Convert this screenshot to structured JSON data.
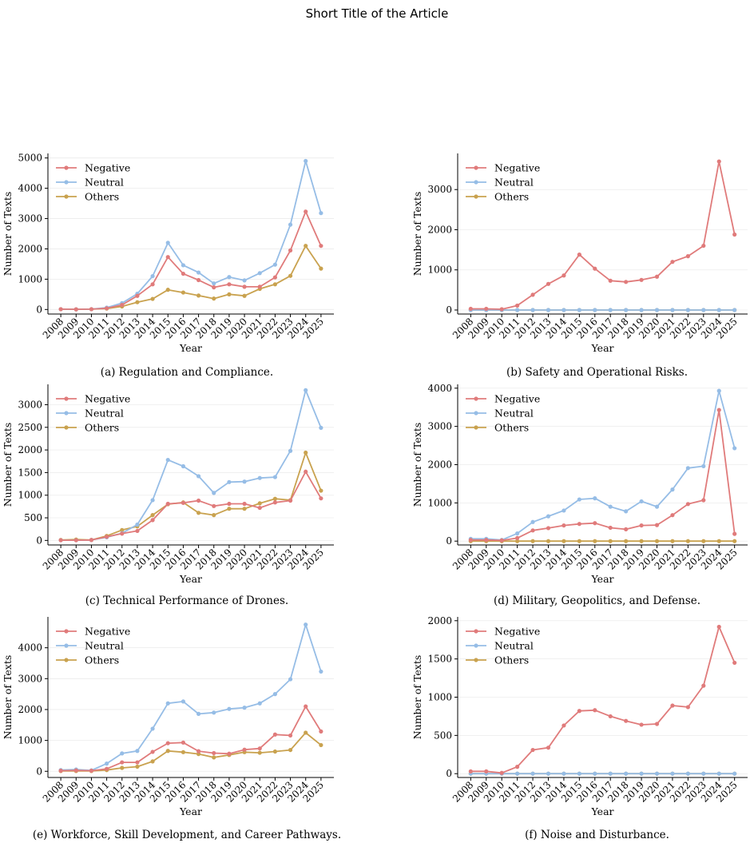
{
  "page_title": "Short Title of the Article",
  "colors": {
    "Negative": "#e07b7b",
    "Neutral": "#96bde6",
    "Others": "#c9a24f"
  },
  "chart_data": [
    {
      "type": "line",
      "caption": "(a) Regulation and Compliance.",
      "xlabel": "Year",
      "ylabel": "Number of Texts",
      "ylim": [
        -150,
        5150
      ],
      "yticks": [
        0,
        1000,
        2000,
        3000,
        4000,
        5000
      ],
      "legend": "top-left",
      "grid": "y-light",
      "x": [
        "2008",
        "2009",
        "2010",
        "2011",
        "2012",
        "2013",
        "2014",
        "2015",
        "2016",
        "2017",
        "2018",
        "2019",
        "2020",
        "2021",
        "2022",
        "2023",
        "2024",
        "2025"
      ],
      "series": [
        {
          "name": "Negative",
          "values": [
            10,
            5,
            10,
            40,
            150,
            450,
            830,
            1730,
            1180,
            970,
            730,
            830,
            750,
            750,
            1060,
            1950,
            3230,
            2100
          ]
        },
        {
          "name": "Neutral",
          "values": [
            10,
            5,
            10,
            60,
            210,
            520,
            1100,
            2200,
            1460,
            1220,
            860,
            1070,
            960,
            1200,
            1480,
            2800,
            4900,
            3180
          ]
        },
        {
          "name": "Others",
          "values": [
            10,
            5,
            10,
            30,
            100,
            240,
            350,
            650,
            560,
            460,
            360,
            500,
            450,
            680,
            830,
            1110,
            2100,
            1350
          ]
        }
      ]
    },
    {
      "type": "line",
      "caption": "(b) Safety and Operational Risks.",
      "xlabel": "Year",
      "ylabel": "Number of Texts",
      "ylim": [
        -100,
        3900
      ],
      "yticks": [
        0,
        1000,
        2000,
        3000
      ],
      "legend": "top-left",
      "grid": "y-light",
      "x": [
        "2008",
        "2009",
        "2010",
        "2011",
        "2012",
        "2013",
        "2014",
        "2015",
        "2016",
        "2017",
        "2018",
        "2019",
        "2020",
        "2021",
        "2022",
        "2023",
        "2024",
        "2025"
      ],
      "series": [
        {
          "name": "Negative",
          "values": [
            30,
            30,
            20,
            110,
            380,
            650,
            860,
            1380,
            1030,
            730,
            700,
            750,
            830,
            1200,
            1340,
            1600,
            3700,
            1880
          ]
        },
        {
          "name": "Neutral",
          "values": [
            0,
            0,
            0,
            0,
            0,
            0,
            0,
            0,
            0,
            0,
            0,
            0,
            0,
            0,
            0,
            0,
            0,
            0
          ]
        },
        {
          "name": "Others",
          "values": [
            0,
            0,
            0,
            0,
            0,
            0,
            0,
            0,
            0,
            0,
            0,
            0,
            0,
            0,
            0,
            0,
            0,
            0
          ]
        }
      ]
    },
    {
      "type": "line",
      "caption": "(c) Technical Performance of Drones.",
      "xlabel": "Year",
      "ylabel": "Number of Texts",
      "ylim": [
        -100,
        3450
      ],
      "yticks": [
        0,
        500,
        1000,
        1500,
        2000,
        2500,
        3000
      ],
      "legend": "top-left",
      "grid": "y-light",
      "x": [
        "2008",
        "2009",
        "2010",
        "2011",
        "2012",
        "2013",
        "2014",
        "2015",
        "2016",
        "2017",
        "2018",
        "2019",
        "2020",
        "2021",
        "2022",
        "2023",
        "2024",
        "2025"
      ],
      "series": [
        {
          "name": "Negative",
          "values": [
            5,
            5,
            10,
            80,
            150,
            210,
            450,
            810,
            830,
            880,
            760,
            810,
            810,
            720,
            840,
            880,
            1520,
            930
          ]
        },
        {
          "name": "Neutral",
          "values": [
            5,
            5,
            10,
            70,
            160,
            350,
            890,
            1780,
            1640,
            1420,
            1050,
            1290,
            1300,
            1380,
            1400,
            1980,
            3320,
            2490
          ]
        },
        {
          "name": "Others",
          "values": [
            10,
            20,
            10,
            100,
            230,
            310,
            560,
            800,
            840,
            610,
            560,
            700,
            700,
            820,
            920,
            890,
            1940,
            1100
          ]
        }
      ]
    },
    {
      "type": "line",
      "caption": "(d) Military, Geopolitics, and Defense.",
      "xlabel": "Year",
      "ylabel": "Number of Texts",
      "ylim": [
        -100,
        4100
      ],
      "yticks": [
        0,
        1000,
        2000,
        3000,
        4000
      ],
      "legend": "top-left",
      "grid": "y-light",
      "x": [
        "2008",
        "2009",
        "2010",
        "2011",
        "2012",
        "2013",
        "2014",
        "2015",
        "2016",
        "2017",
        "2018",
        "2019",
        "2020",
        "2021",
        "2022",
        "2023",
        "2024",
        "2025"
      ],
      "series": [
        {
          "name": "Negative",
          "values": [
            30,
            30,
            20,
            80,
            280,
            340,
            410,
            450,
            470,
            350,
            310,
            410,
            420,
            680,
            970,
            1070,
            3430,
            190
          ]
        },
        {
          "name": "Neutral",
          "values": [
            60,
            60,
            30,
            200,
            500,
            650,
            800,
            1090,
            1120,
            900,
            780,
            1040,
            900,
            1350,
            1910,
            1960,
            3930,
            2430
          ]
        },
        {
          "name": "Others",
          "values": [
            0,
            0,
            0,
            0,
            0,
            0,
            0,
            0,
            0,
            0,
            0,
            0,
            0,
            0,
            0,
            0,
            0,
            0
          ]
        }
      ]
    },
    {
      "type": "line",
      "caption": "(e) Workforce, Skill Development, and Career Pathways.",
      "xlabel": "Year",
      "ylabel": "Number of Texts",
      "ylim": [
        -200,
        5000
      ],
      "yticks": [
        0,
        1000,
        2000,
        3000,
        4000
      ],
      "legend": "top-left",
      "grid": "y-light",
      "x": [
        "2008",
        "2009",
        "2010",
        "2011",
        "2012",
        "2013",
        "2014",
        "2015",
        "2016",
        "2017",
        "2018",
        "2019",
        "2020",
        "2021",
        "2022",
        "2023",
        "2024",
        "2025"
      ],
      "series": [
        {
          "name": "Negative",
          "values": [
            20,
            30,
            20,
            80,
            290,
            290,
            630,
            910,
            930,
            650,
            590,
            570,
            700,
            740,
            1190,
            1160,
            2100,
            1290
          ]
        },
        {
          "name": "Neutral",
          "values": [
            40,
            60,
            30,
            250,
            580,
            660,
            1380,
            2200,
            2260,
            1860,
            1900,
            2020,
            2060,
            2200,
            2500,
            2980,
            4750,
            3230
          ]
        },
        {
          "name": "Others",
          "values": [
            10,
            10,
            10,
            40,
            110,
            150,
            320,
            660,
            620,
            560,
            450,
            530,
            620,
            600,
            640,
            690,
            1250,
            850
          ]
        }
      ]
    },
    {
      "type": "line",
      "caption": "(f) Noise and Disturbance.",
      "xlabel": "Year",
      "ylabel": "Number of Texts",
      "ylim": [
        -50,
        2050
      ],
      "yticks": [
        0,
        500,
        1000,
        1500,
        2000
      ],
      "legend": "top-left",
      "grid": "y-light",
      "x": [
        "2008",
        "2009",
        "2010",
        "2011",
        "2012",
        "2013",
        "2014",
        "2015",
        "2016",
        "2017",
        "2018",
        "2019",
        "2020",
        "2021",
        "2022",
        "2023",
        "2024",
        "2025"
      ],
      "series": [
        {
          "name": "Negative",
          "values": [
            30,
            30,
            10,
            90,
            310,
            340,
            630,
            820,
            830,
            750,
            690,
            640,
            650,
            890,
            870,
            1150,
            1920,
            1450
          ]
        },
        {
          "name": "Neutral",
          "values": [
            0,
            0,
            0,
            0,
            0,
            0,
            0,
            0,
            0,
            0,
            0,
            0,
            0,
            0,
            0,
            0,
            0,
            0
          ]
        },
        {
          "name": "Others",
          "values": [
            0,
            0,
            0,
            0,
            0,
            0,
            0,
            0,
            0,
            0,
            0,
            0,
            0,
            0,
            0,
            0,
            0,
            0
          ]
        }
      ]
    }
  ]
}
